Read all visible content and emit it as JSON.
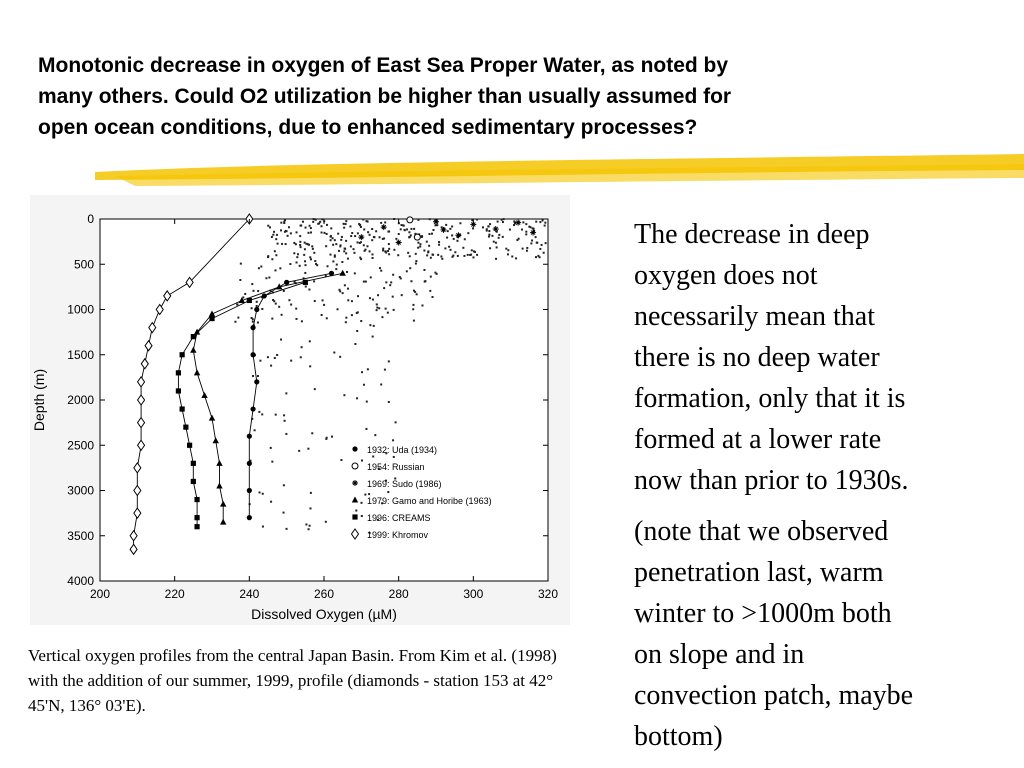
{
  "slide": {
    "title_lines": [
      "Monotonic decrease in oxygen of East Sea Proper Water, as noted by",
      "many others.  Could O2 utilization be higher than usually assumed for",
      "open ocean conditions, due to enhanced sedimentary processes?"
    ],
    "caption": "Vertical oxygen profiles from the central Japan Basin. From Kim et al. (1998) with the addition of our summer, 1999, profile (diamonds - station 153 at 42° 45'N, 136° 03'E).",
    "side_text_1": "The decrease in deep\noxygen does not\nnecessarily mean that\nthere is no deep water\nformation, only that it is\nformed at a lower rate\nnow than prior to 1930s.",
    "side_text_2": "(note that we observed\npenetration last, warm\nwinter to >1000m both\non slope and in\nconvection patch, maybe\nbottom)",
    "accent_color": "#f5c400"
  },
  "chart_data": {
    "type": "scatter",
    "xlabel": "Dissolved Oxygen  (µM)",
    "ylabel": "Depth  (m)",
    "xlim": [
      200,
      320
    ],
    "ylim": [
      4000,
      0
    ],
    "xticks": [
      200,
      220,
      240,
      260,
      280,
      300,
      320
    ],
    "yticks": [
      0,
      500,
      1000,
      1500,
      2000,
      2500,
      3000,
      3500,
      4000
    ],
    "legend_position": "lower-right",
    "series": [
      {
        "name": "1932: Uda  (1934)",
        "marker": "circle-filled",
        "points": [
          [
            262,
            600
          ],
          [
            250,
            700
          ],
          [
            244,
            850
          ],
          [
            242,
            1000
          ],
          [
            241,
            1200
          ],
          [
            241,
            1500
          ],
          [
            242,
            1800
          ],
          [
            241,
            2100
          ],
          [
            240,
            2400
          ],
          [
            240,
            2700
          ],
          [
            240,
            3000
          ],
          [
            240,
            3300
          ]
        ]
      },
      {
        "name": "1954: Russian",
        "marker": "circle-open",
        "points": [
          [
            283,
            10
          ],
          [
            285,
            200
          ]
        ]
      },
      {
        "name": "1969: Sudo  (1986)",
        "marker": "asterisk",
        "points": [
          [
            290,
            30
          ],
          [
            292,
            120
          ],
          [
            296,
            180
          ],
          [
            300,
            60
          ],
          [
            306,
            110
          ],
          [
            312,
            40
          ],
          [
            316,
            150
          ],
          [
            276,
            90
          ],
          [
            270,
            200
          ],
          [
            280,
            260
          ]
        ]
      },
      {
        "name": "1979: Gamo and Horibe  (1963)",
        "marker": "triangle",
        "points": [
          [
            265,
            600
          ],
          [
            248,
            750
          ],
          [
            238,
            900
          ],
          [
            230,
            1050
          ],
          [
            226,
            1250
          ],
          [
            225,
            1450
          ],
          [
            226,
            1700
          ],
          [
            228,
            1950
          ],
          [
            230,
            2200
          ],
          [
            231,
            2450
          ],
          [
            232,
            2700
          ],
          [
            232,
            2950
          ],
          [
            233,
            3150
          ],
          [
            233,
            3350
          ]
        ]
      },
      {
        "name": "1996: CREAMS",
        "marker": "square",
        "points": [
          [
            255,
            700
          ],
          [
            240,
            900
          ],
          [
            230,
            1100
          ],
          [
            225,
            1300
          ],
          [
            222,
            1500
          ],
          [
            221,
            1700
          ],
          [
            221,
            1900
          ],
          [
            222,
            2100
          ],
          [
            223,
            2300
          ],
          [
            224,
            2500
          ],
          [
            225,
            2700
          ],
          [
            225,
            2900
          ],
          [
            226,
            3100
          ],
          [
            226,
            3300
          ],
          [
            226,
            3400
          ]
        ]
      },
      {
        "name": "1999: Khromov",
        "marker": "diamond",
        "points": [
          [
            240,
            0
          ],
          [
            224,
            700
          ],
          [
            218,
            850
          ],
          [
            216,
            1000
          ],
          [
            214,
            1200
          ],
          [
            213,
            1400
          ],
          [
            212,
            1600
          ],
          [
            211,
            1800
          ],
          [
            211,
            2000
          ],
          [
            211,
            2250
          ],
          [
            211,
            2500
          ],
          [
            210,
            2750
          ],
          [
            210,
            3000
          ],
          [
            210,
            3250
          ],
          [
            209,
            3500
          ],
          [
            209,
            3650
          ]
        ]
      }
    ]
  }
}
